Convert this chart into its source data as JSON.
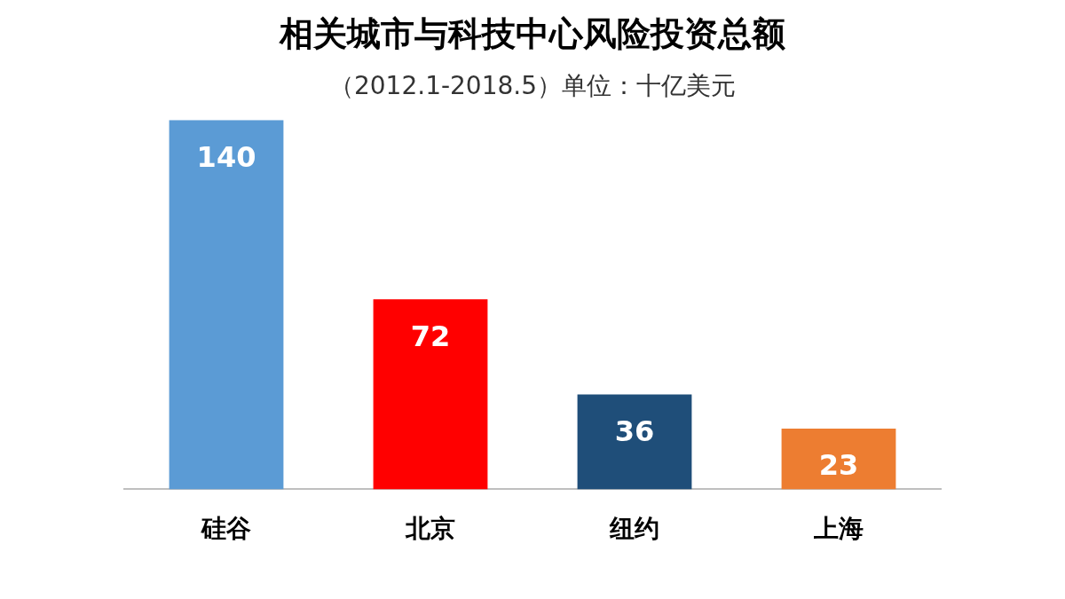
{
  "chart_data": {
    "type": "bar",
    "title": "相关城市与科技中心风险投资总额",
    "subtitle": "（2012.1-2018.5）单位：十亿美元",
    "categories": [
      "硅谷",
      "北京",
      "纽约",
      "上海"
    ],
    "values": [
      140,
      72,
      36,
      23
    ],
    "colors": [
      "#5b9bd5",
      "#ff0000",
      "#1f4e79",
      "#ed7d31"
    ],
    "data_labels": true,
    "grid": false,
    "legend": false
  }
}
